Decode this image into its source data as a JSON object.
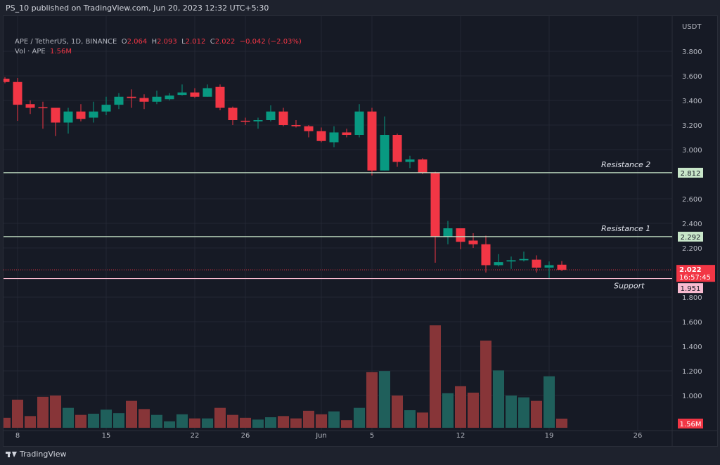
{
  "header": {
    "published": "PS_10 published on TradingView.com, Jun 20, 2023 12:32 UTC+5:30"
  },
  "legend": {
    "symbol": "APE / TetherUS, 1D, BINANCE",
    "o_label": "O",
    "o": "2.064",
    "h_label": "H",
    "h": "2.093",
    "l_label": "L",
    "l": "2.012",
    "c_label": "C",
    "c": "2.022",
    "change": "−0.042 (−2.03%)",
    "vol_label": "Vol · APE",
    "vol": "1.56M"
  },
  "price_axis": {
    "currency": "USDT",
    "ticks": [
      "3.800",
      "3.600",
      "3.400",
      "3.200",
      "3.000",
      "2.600",
      "2.400",
      "2.200",
      "1.800",
      "1.600",
      "1.400",
      "1.200",
      "1.000"
    ],
    "tick_values": [
      3.8,
      3.6,
      3.4,
      3.2,
      3.0,
      2.6,
      2.4,
      2.2,
      1.8,
      1.6,
      1.4,
      1.2,
      1.0
    ],
    "last_price": "2.022",
    "countdown": "16:57:45",
    "volume_badge": "1.56M"
  },
  "time_axis": {
    "ticks": [
      "8",
      "15",
      "22",
      "26",
      "Jun",
      "5",
      "12",
      "19",
      "26"
    ],
    "tick_index": [
      1,
      8,
      15,
      19,
      25,
      29,
      36,
      43,
      50
    ]
  },
  "levels": [
    {
      "name": "Resistance 2",
      "value": 2.812,
      "label": "2.812",
      "color": "#c8e6c9"
    },
    {
      "name": "Resistance 1",
      "value": 2.292,
      "label": "2.292",
      "color": "#c8e6c9"
    },
    {
      "name": "Support",
      "value": 1.951,
      "label": "1.951",
      "color": "#f8bbd0"
    }
  ],
  "colors": {
    "up": "#089981",
    "down": "#f23645",
    "vol_up": "#1f5f5b",
    "vol_down": "#873538",
    "background": "#161a25"
  },
  "chart_data": {
    "type": "candlestick",
    "first_date": "May 7",
    "last_date": "Jun 20",
    "ohlc": [
      [
        3.577,
        3.59,
        3.54,
        3.55
      ],
      [
        3.55,
        3.583,
        3.234,
        3.365
      ],
      [
        3.37,
        3.4,
        3.29,
        3.34
      ],
      [
        3.345,
        3.39,
        3.17,
        3.34
      ],
      [
        3.34,
        3.34,
        3.11,
        3.22
      ],
      [
        3.22,
        3.34,
        3.13,
        3.31
      ],
      [
        3.31,
        3.37,
        3.23,
        3.25
      ],
      [
        3.26,
        3.39,
        3.22,
        3.31
      ],
      [
        3.31,
        3.43,
        3.28,
        3.365
      ],
      [
        3.365,
        3.46,
        3.33,
        3.43
      ],
      [
        3.43,
        3.49,
        3.34,
        3.42
      ],
      [
        3.42,
        3.45,
        3.33,
        3.39
      ],
      [
        3.39,
        3.48,
        3.37,
        3.43
      ],
      [
        3.41,
        3.46,
        3.4,
        3.44
      ],
      [
        3.445,
        3.53,
        3.44,
        3.465
      ],
      [
        3.465,
        3.5,
        3.42,
        3.43
      ],
      [
        3.43,
        3.53,
        3.43,
        3.5
      ],
      [
        3.51,
        3.53,
        3.32,
        3.34
      ],
      [
        3.34,
        3.35,
        3.2,
        3.24
      ],
      [
        3.235,
        3.26,
        3.2,
        3.23
      ],
      [
        3.23,
        3.26,
        3.17,
        3.24
      ],
      [
        3.24,
        3.36,
        3.23,
        3.31
      ],
      [
        3.31,
        3.34,
        3.19,
        3.2
      ],
      [
        3.2,
        3.24,
        3.18,
        3.19
      ],
      [
        3.19,
        3.2,
        3.1,
        3.15
      ],
      [
        3.15,
        3.18,
        3.06,
        3.07
      ],
      [
        3.06,
        3.19,
        3.02,
        3.14
      ],
      [
        3.14,
        3.17,
        3.1,
        3.12
      ],
      [
        3.12,
        3.37,
        3.1,
        3.31
      ],
      [
        3.31,
        3.34,
        2.79,
        2.83
      ],
      [
        2.83,
        3.27,
        2.83,
        3.12
      ],
      [
        3.12,
        3.13,
        2.86,
        2.9
      ],
      [
        2.9,
        2.95,
        2.85,
        2.92
      ],
      [
        2.92,
        2.93,
        2.8,
        2.81
      ],
      [
        2.81,
        2.82,
        2.08,
        2.29
      ],
      [
        2.29,
        2.42,
        2.23,
        2.36
      ],
      [
        2.36,
        2.36,
        2.19,
        2.25
      ],
      [
        2.26,
        2.32,
        2.2,
        2.23
      ],
      [
        2.23,
        2.3,
        2.0,
        2.06
      ],
      [
        2.06,
        2.15,
        2.05,
        2.085
      ],
      [
        2.09,
        2.13,
        2.03,
        2.1
      ],
      [
        2.1,
        2.17,
        2.09,
        2.11
      ],
      [
        2.105,
        2.14,
        2.0,
        2.04
      ],
      [
        2.04,
        2.09,
        1.95,
        2.06
      ],
      [
        2.064,
        2.093,
        2.012,
        2.022
      ]
    ],
    "volume_millions": [
      1.7,
      4.8,
      2.0,
      5.3,
      5.5,
      3.4,
      2.2,
      2.4,
      3.1,
      2.5,
      4.6,
      3.2,
      2.2,
      1.1,
      2.3,
      1.6,
      1.6,
      3.4,
      2.2,
      1.7,
      1.4,
      1.8,
      2.0,
      1.6,
      2.9,
      2.3,
      2.8,
      1.3,
      3.4,
      9.5,
      9.7,
      5.5,
      3.0,
      2.6,
      17.5,
      5.9,
      7.1,
      6.0,
      14.9,
      9.8,
      5.5,
      5.2,
      4.6,
      8.8,
      1.56
    ],
    "ylim": [
      1.0,
      3.9
    ]
  },
  "footer": {
    "brand": "TradingView"
  }
}
